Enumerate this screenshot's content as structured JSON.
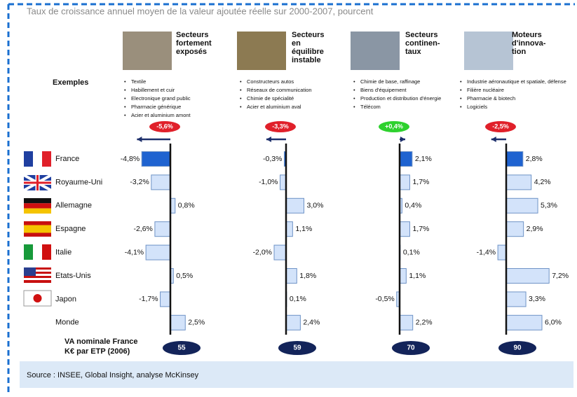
{
  "title": "Taux de croissance annuel moyen de la valeur ajoutée réelle sur 2000-2007, pourcent",
  "examples_label": "Exemples",
  "categories": [
    "France",
    "Royaume-Uni",
    "Allemagne",
    "Espagne",
    "Italie",
    "Etats-Unis",
    "Japon",
    "Monde"
  ],
  "va_label": [
    "VA nominale France",
    "K€ par ETP (2006)"
  ],
  "source": "Source : INSEE, Global Insight, analyse McKinsey",
  "chart_data": [
    {
      "type": "bar",
      "title": [
        "Secteurs",
        "fortement",
        "exposés"
      ],
      "examples": [
        "Textile",
        "Habillement et cuir",
        "Electronique grand public",
        "Pharmacie générique",
        "Acier et aluminium amont"
      ],
      "badge": {
        "value": -5.6,
        "label": "-5,6%",
        "color": "#e0202a"
      },
      "values": [
        -4.8,
        -3.2,
        0.8,
        -2.6,
        -4.1,
        0.5,
        -1.7,
        2.5
      ],
      "value_labels": [
        "-4,8%",
        "-3,2%",
        "0,8%",
        "-2,6%",
        "-4,1%",
        "0,5%",
        "-1,7%",
        "2,5%"
      ],
      "va_value": 55,
      "xlim": [
        -6,
        8
      ],
      "color": "#d3e3fa",
      "highlight_color": "#1f63d0"
    },
    {
      "type": "bar",
      "title": [
        "Secteurs",
        "en",
        "équilibre",
        "instable"
      ],
      "examples": [
        "Constructeurs autos",
        "Réseaux de communication",
        "Chimie de spécialité",
        "Acier et aluminium aval"
      ],
      "badge": {
        "value": -3.3,
        "label": "-3,3%",
        "color": "#e0202a"
      },
      "values": [
        -0.3,
        -1.0,
        3.0,
        1.1,
        -2.0,
        1.8,
        0.1,
        2.4
      ],
      "value_labels": [
        "-0,3%",
        "-1,0%",
        "3,0%",
        "1,1%",
        "-2,0%",
        "1,8%",
        "0,1%",
        "2,4%"
      ],
      "va_value": 59,
      "xlim": [
        -6,
        8
      ],
      "color": "#d3e3fa",
      "highlight_color": "#1f63d0"
    },
    {
      "type": "bar",
      "title": [
        "Secteurs",
        "continen-",
        "taux"
      ],
      "examples": [
        "Chimie de base, raffinage",
        "Biens d'équipement",
        "Production et distribution d'énergie",
        "Télécom"
      ],
      "badge": {
        "value": 0.4,
        "label": "+0,4%",
        "color": "#2ed12e"
      },
      "values": [
        2.1,
        1.7,
        0.4,
        1.7,
        0.1,
        1.1,
        -0.5,
        2.2
      ],
      "value_labels": [
        "2,1%",
        "1,7%",
        "0,4%",
        "1,7%",
        "0,1%",
        "1,1%",
        "-0,5%",
        "2,2%"
      ],
      "va_value": 70,
      "xlim": [
        -6,
        8
      ],
      "color": "#d3e3fa",
      "highlight_color": "#1f63d0"
    },
    {
      "type": "bar",
      "title": [
        "Moteurs",
        "d'innova-",
        "tion"
      ],
      "examples": [
        "Industrie aéronautique et spatiale, défense",
        "Filière nucléaire",
        "Pharmacie & biotech",
        "Logiciels"
      ],
      "badge": {
        "value": -2.5,
        "label": "-2,5%",
        "color": "#e0202a"
      },
      "values": [
        2.8,
        4.2,
        5.3,
        2.9,
        -1.4,
        7.2,
        3.3,
        6.0
      ],
      "value_labels": [
        "2,8%",
        "4,2%",
        "5,3%",
        "2,9%",
        "-1,4%",
        "7,2%",
        "3,3%",
        "6,0%"
      ],
      "va_value": 90,
      "xlim": [
        -6,
        8
      ],
      "color": "#d3e3fa",
      "highlight_color": "#1f63d0"
    }
  ]
}
